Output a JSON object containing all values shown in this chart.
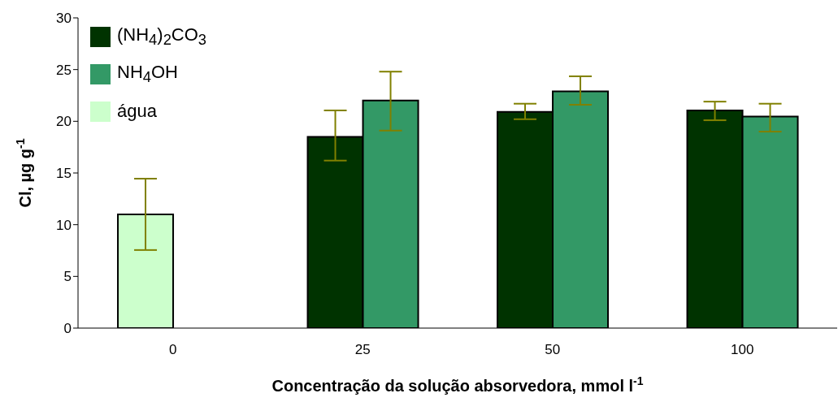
{
  "chart_data": {
    "type": "bar",
    "categories": [
      "0",
      "25",
      "50",
      "100"
    ],
    "xlabel": "Concentração da solução absorvedora, mmol l$^{-1}$",
    "ylabel": "Cl, µg g$^{-1}$",
    "series": [
      {
        "name": "(NH$_{4}$)$_{2}$CO$_{3}$",
        "color": "#003300",
        "values": [
          null,
          18.5,
          20.9,
          21.05
        ],
        "errors": [
          null,
          [
            16.2,
            21.05
          ],
          [
            20.2,
            21.7
          ],
          [
            20.1,
            21.9
          ]
        ]
      },
      {
        "name": "NH$_{4}$OH",
        "color": "#339966",
        "values": [
          null,
          22.0,
          22.9,
          20.45
        ],
        "errors": [
          null,
          [
            19.1,
            24.8
          ],
          [
            21.6,
            24.35
          ],
          [
            19.0,
            21.7
          ]
        ]
      },
      {
        "name": "água",
        "color": "#ccffcc",
        "values": [
          11.0,
          null,
          null,
          null
        ],
        "errors": [
          [
            7.55,
            14.45
          ],
          null,
          null,
          null
        ]
      }
    ],
    "ylim": [
      0,
      30
    ],
    "yticks": [
      0,
      5,
      10,
      15,
      20,
      25,
      30
    ],
    "grid": false,
    "legend": "top left"
  }
}
